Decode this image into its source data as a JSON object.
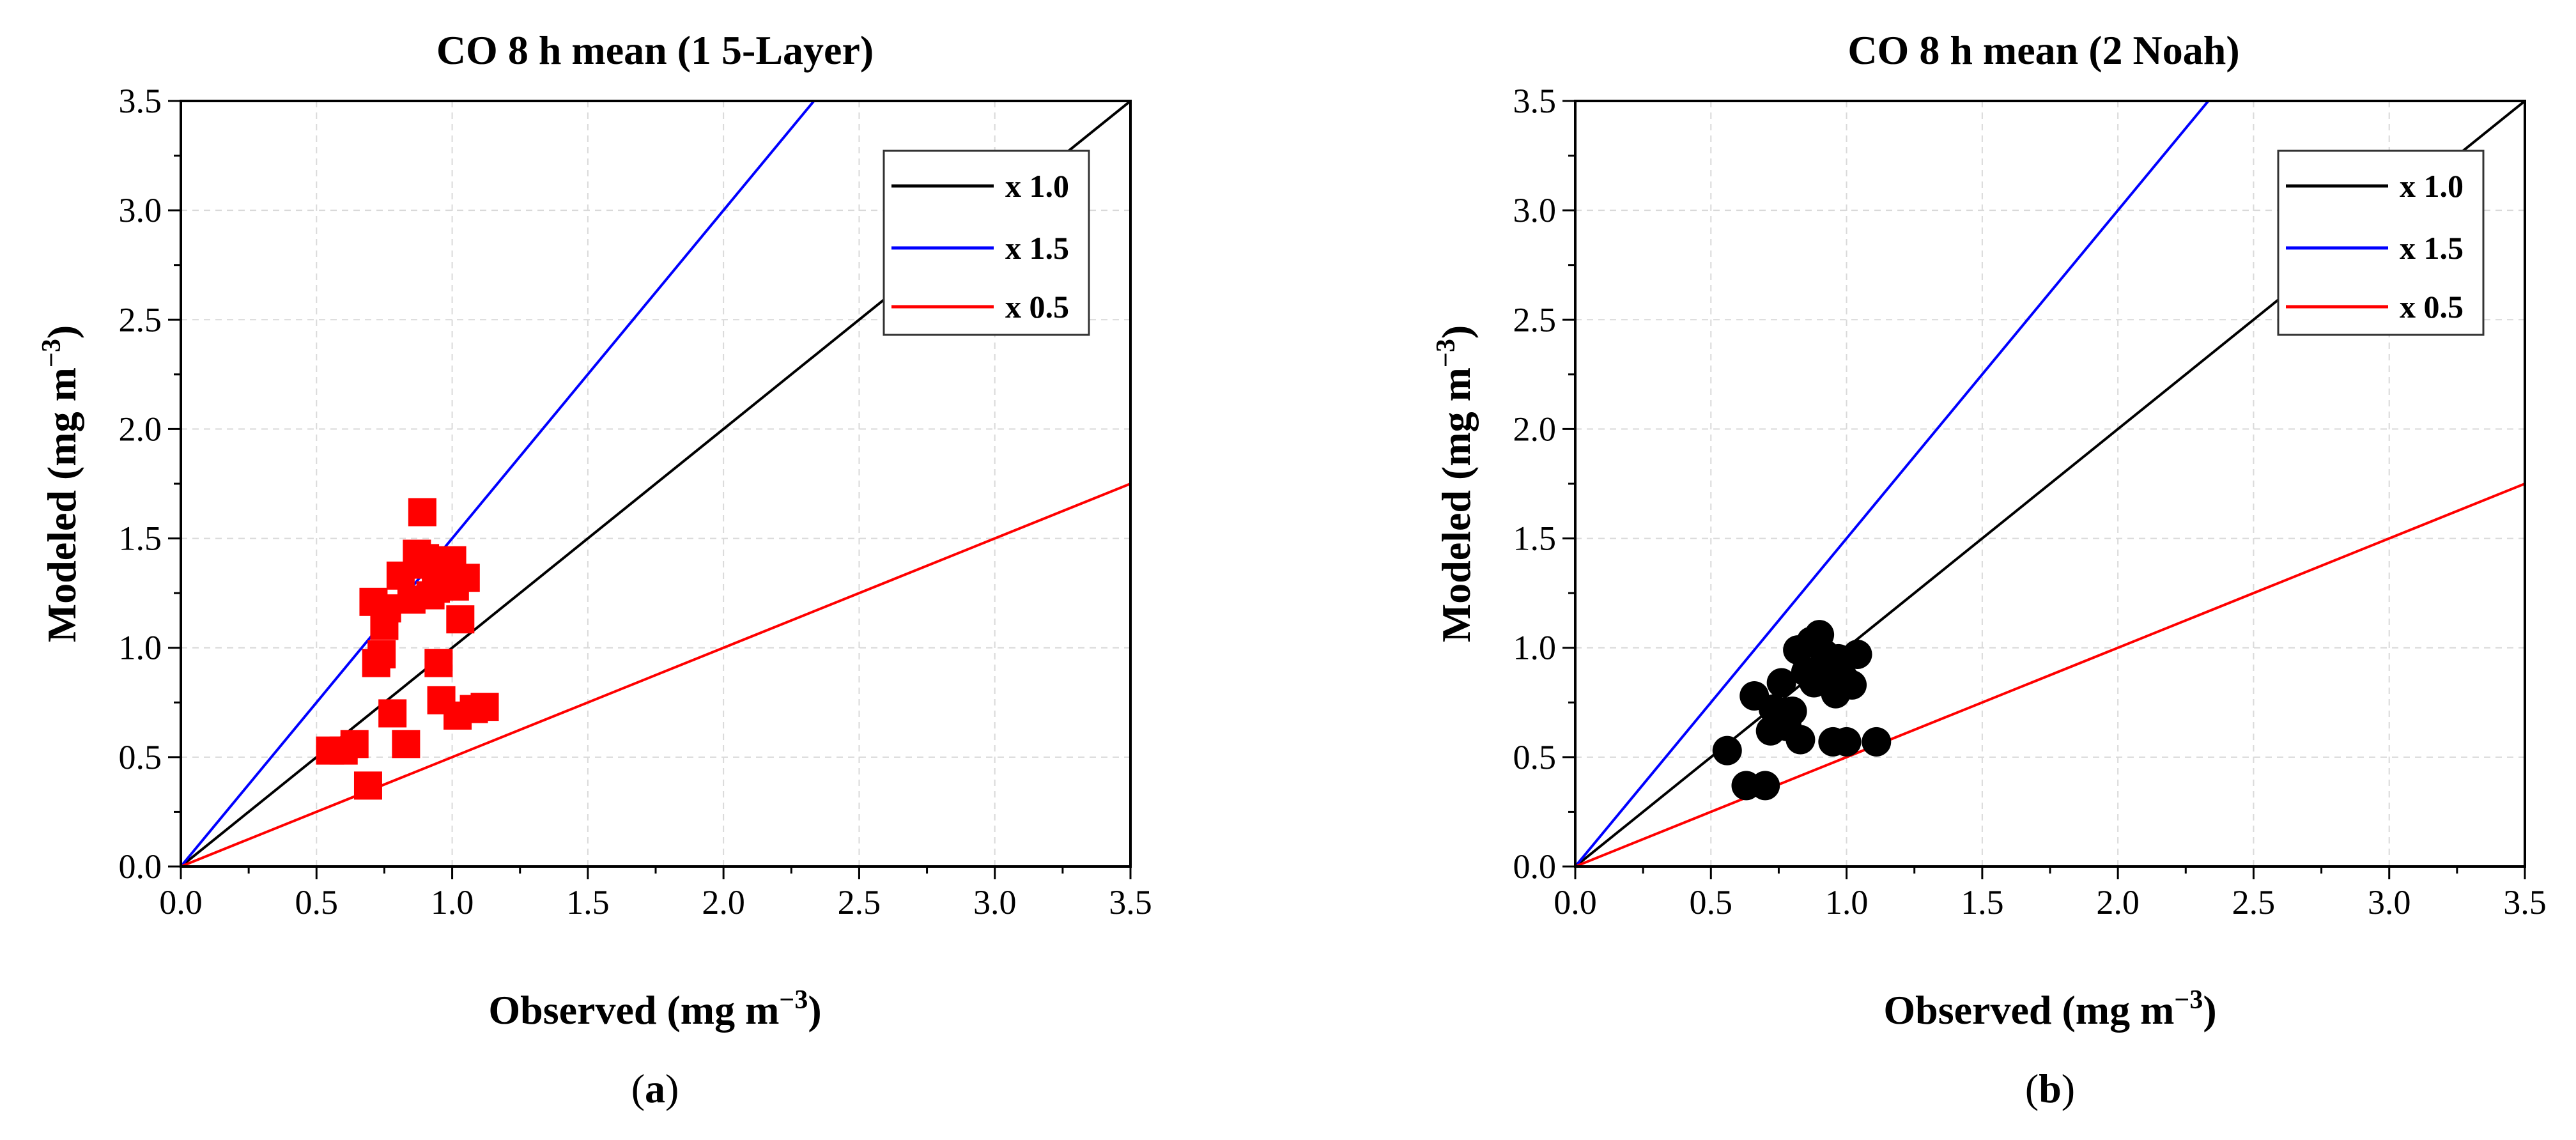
{
  "figure": {
    "panel_labels": [
      {
        "open": "(",
        "letter": "a",
        "close": ")"
      },
      {
        "open": "(",
        "letter": "b",
        "close": ")"
      }
    ]
  },
  "chart_data": [
    {
      "type": "scatter",
      "title": "CO 8 h mean (1 5-Layer)",
      "xlabel": {
        "text": "Observed (mg m",
        "sup": "−3",
        "tail": ")"
      },
      "ylabel": {
        "text": "Modeled (mg m",
        "sup": "−3",
        "tail": ")"
      },
      "xlim": [
        0.0,
        3.5
      ],
      "ylim": [
        0.0,
        3.5
      ],
      "xticks": [
        "0.0",
        "0.5",
        "1.0",
        "1.5",
        "2.0",
        "2.5",
        "3.0",
        "3.5"
      ],
      "yticks": [
        "0.0",
        "0.5",
        "1.0",
        "1.5",
        "2.0",
        "2.5",
        "3.0",
        "3.5"
      ],
      "grid": true,
      "legend_position": "top-right",
      "marker": "square",
      "marker_color": "#ff0000",
      "reference_lines": [
        {
          "label": "x 1.0",
          "slope": 1.0,
          "color": "#000000"
        },
        {
          "label": "x 1.5",
          "slope": 1.5,
          "color": "#0000ff"
        },
        {
          "label": "x 0.5",
          "slope": 0.5,
          "color": "#ff0000"
        }
      ],
      "points": [
        [
          0.55,
          0.53
        ],
        [
          0.6,
          0.53
        ],
        [
          0.64,
          0.56
        ],
        [
          0.69,
          0.37
        ],
        [
          0.71,
          1.21
        ],
        [
          0.72,
          0.93
        ],
        [
          0.74,
          0.97
        ],
        [
          0.75,
          1.1
        ],
        [
          0.76,
          1.18
        ],
        [
          0.78,
          0.7
        ],
        [
          0.81,
          1.33
        ],
        [
          0.83,
          0.56
        ],
        [
          0.85,
          1.22
        ],
        [
          0.87,
          1.43
        ],
        [
          0.88,
          1.38
        ],
        [
          0.89,
          1.62
        ],
        [
          0.9,
          1.41
        ],
        [
          0.92,
          1.24
        ],
        [
          0.94,
          1.27
        ],
        [
          0.95,
          0.93
        ],
        [
          0.96,
          0.76
        ],
        [
          0.98,
          1.37
        ],
        [
          1.0,
          1.4
        ],
        [
          1.01,
          1.28
        ],
        [
          1.02,
          0.69
        ],
        [
          1.03,
          1.13
        ],
        [
          1.05,
          1.32
        ],
        [
          1.08,
          0.72
        ],
        [
          1.12,
          0.73
        ]
      ]
    },
    {
      "type": "scatter",
      "title": "CO 8 h mean (2 Noah)",
      "xlabel": {
        "text": "Observed (mg m",
        "sup": "−3",
        "tail": ")"
      },
      "ylabel": {
        "text": "Modeled (mg m",
        "sup": "−3",
        "tail": ")"
      },
      "xlim": [
        0.0,
        3.5
      ],
      "ylim": [
        0.0,
        3.5
      ],
      "xticks": [
        "0.0",
        "0.5",
        "1.0",
        "1.5",
        "2.0",
        "2.5",
        "3.0",
        "3.5"
      ],
      "yticks": [
        "0.0",
        "0.5",
        "1.0",
        "1.5",
        "2.0",
        "2.5",
        "3.0",
        "3.5"
      ],
      "grid": true,
      "legend_position": "top-right",
      "marker": "circle",
      "marker_color": "#000000",
      "reference_lines": [
        {
          "label": "x 1.0",
          "slope": 1.0,
          "color": "#000000"
        },
        {
          "label": "x 1.5",
          "slope": 1.5,
          "color": "#0000ff"
        },
        {
          "label": "x 0.5",
          "slope": 0.5,
          "color": "#ff0000"
        }
      ],
      "points": [
        [
          0.56,
          0.53
        ],
        [
          0.63,
          0.37
        ],
        [
          0.66,
          0.78
        ],
        [
          0.7,
          0.37
        ],
        [
          0.72,
          0.62
        ],
        [
          0.73,
          0.72
        ],
        [
          0.76,
          0.84
        ],
        [
          0.78,
          0.64
        ],
        [
          0.8,
          0.71
        ],
        [
          0.82,
          0.99
        ],
        [
          0.83,
          0.58
        ],
        [
          0.85,
          0.89
        ],
        [
          0.87,
          1.03
        ],
        [
          0.88,
          0.84
        ],
        [
          0.9,
          1.06
        ],
        [
          0.91,
          0.91
        ],
        [
          0.92,
          0.97
        ],
        [
          0.94,
          0.85
        ],
        [
          0.95,
          0.57
        ],
        [
          0.96,
          0.79
        ],
        [
          0.97,
          0.95
        ],
        [
          0.99,
          0.86
        ],
        [
          1.0,
          0.57
        ],
        [
          1.02,
          0.83
        ],
        [
          1.04,
          0.97
        ],
        [
          1.11,
          0.57
        ]
      ]
    }
  ]
}
